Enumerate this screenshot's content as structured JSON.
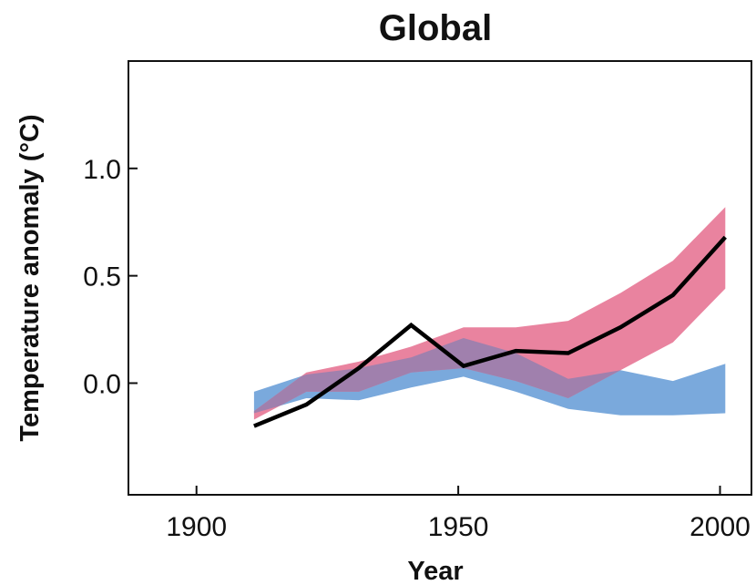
{
  "chart_data": {
    "type": "area",
    "title": "Global",
    "xlabel": "Year",
    "ylabel": "Temperature anomaly (°C)",
    "xlim": [
      1887,
      2006
    ],
    "ylim": [
      -0.52,
      1.5
    ],
    "x_ticks": [
      {
        "value": 1900,
        "label": "1900"
      },
      {
        "value": 1950,
        "label": "1950"
      },
      {
        "value": 2000,
        "label": "2000"
      }
    ],
    "y_ticks": [
      {
        "value": 0.0,
        "label": "0.0"
      },
      {
        "value": 0.5,
        "label": "0.5"
      },
      {
        "value": 1.0,
        "label": "1.0"
      }
    ],
    "grid": false,
    "colors": {
      "observed": "#000000",
      "natural_band": "#7aa9dc",
      "all_forcings_band": "#e9839f",
      "overlap": "#a080ad",
      "axes": "#111111"
    },
    "series": [
      {
        "kind": "band",
        "x": [
          1911,
          1921,
          1931,
          1941,
          1951,
          1961,
          1971,
          1981,
          1991,
          2001
        ],
        "upper": [
          -0.04,
          0.04,
          0.07,
          0.12,
          0.21,
          0.14,
          0.02,
          0.06,
          0.01,
          0.09
        ],
        "lower": [
          -0.14,
          -0.07,
          -0.08,
          -0.02,
          0.03,
          -0.04,
          -0.12,
          -0.15,
          -0.15,
          -0.14
        ]
      },
      {
        "kind": "band",
        "x": [
          1911,
          1921,
          1931,
          1941,
          1951,
          1961,
          1971,
          1981,
          1991,
          2001
        ],
        "upper": [
          -0.13,
          0.05,
          0.1,
          0.17,
          0.26,
          0.26,
          0.29,
          0.42,
          0.57,
          0.82
        ],
        "lower": [
          -0.17,
          -0.04,
          -0.04,
          0.05,
          0.07,
          0.01,
          -0.07,
          0.06,
          0.19,
          0.44
        ]
      },
      {
        "kind": "line",
        "x": [
          1911,
          1921,
          1931,
          1941,
          1951,
          1961,
          1971,
          1981,
          1991,
          2001
        ],
        "y": [
          -0.2,
          -0.1,
          0.07,
          0.27,
          0.08,
          0.15,
          0.14,
          0.26,
          0.41,
          0.68
        ]
      }
    ]
  }
}
